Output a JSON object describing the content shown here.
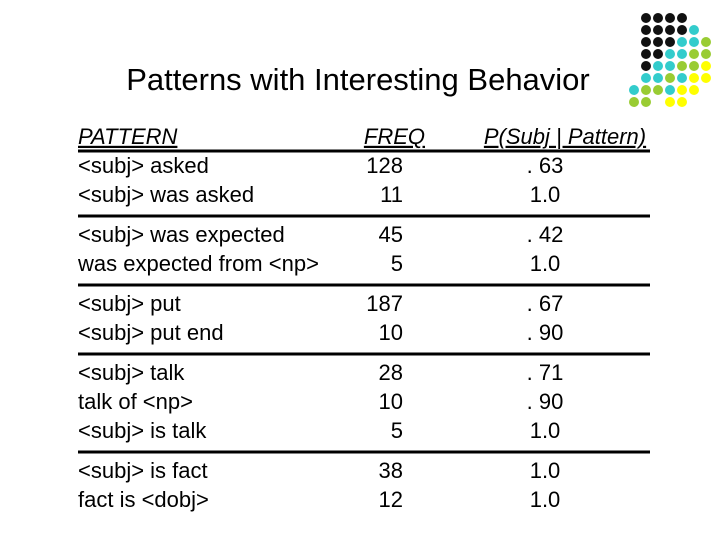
{
  "title": "Patterns with Interesting Behavior",
  "table": {
    "header": [
      "PATTERN",
      "FREQ",
      "P(Subj | Pattern)"
    ],
    "groups": [
      {
        "rows": [
          [
            "<subj> asked",
            "128",
            ". 63"
          ],
          [
            "<subj> was asked",
            "11",
            "1.0"
          ]
        ]
      },
      {
        "rows": [
          [
            "<subj> was expected",
            "45",
            ". 42"
          ],
          [
            "was expected from <np>",
            "5",
            "1.0"
          ]
        ]
      },
      {
        "rows": [
          [
            "<subj> put",
            "187",
            ". 67"
          ],
          [
            "<subj> put end",
            "10",
            ". 90"
          ]
        ]
      },
      {
        "rows": [
          [
            "<subj> talk",
            "28",
            ". 71"
          ],
          [
            "talk of <np>",
            "10",
            ". 90"
          ],
          [
            "<subj> is talk",
            "5",
            "1.0"
          ]
        ]
      },
      {
        "rows": [
          [
            "<subj> is fact",
            "38",
            "1.0"
          ],
          [
            "fact is <dobj>",
            "12",
            "1.0"
          ]
        ]
      }
    ]
  }
}
